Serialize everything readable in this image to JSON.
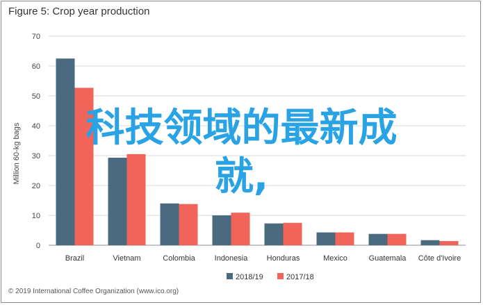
{
  "title": "Figure 5: Crop year production",
  "credit": "© 2019 International Coffee Organization (www.ico.org)",
  "overlay_text": {
    "line1": "科技领域的最新成",
    "line2": "就,"
  },
  "colors": {
    "series1": "#4a6a80",
    "series2": "#f0645a",
    "grid": "#d9d9d9",
    "overlay": "#29a3e4"
  },
  "chart_data": {
    "type": "bar",
    "title": "Figure 5: Crop year production",
    "ylabel": "Million 60-kg bags",
    "xlabel": "",
    "ylim": [
      0,
      70
    ],
    "yticks": [
      0,
      10,
      20,
      30,
      40,
      50,
      60,
      70
    ],
    "grid": true,
    "legend_position": "bottom",
    "categories": [
      "Brazil",
      "Vietnam",
      "Colombia",
      "Indonesia",
      "Honduras",
      "Mexico",
      "Guatemala",
      "Côte d'Ivoire"
    ],
    "series": [
      {
        "name": "2018/19",
        "values": [
          62.5,
          29.3,
          14.0,
          10.0,
          7.3,
          4.3,
          3.8,
          1.7
        ]
      },
      {
        "name": "2017/18",
        "values": [
          52.7,
          30.5,
          13.8,
          10.9,
          7.5,
          4.3,
          3.8,
          1.4
        ]
      }
    ]
  }
}
